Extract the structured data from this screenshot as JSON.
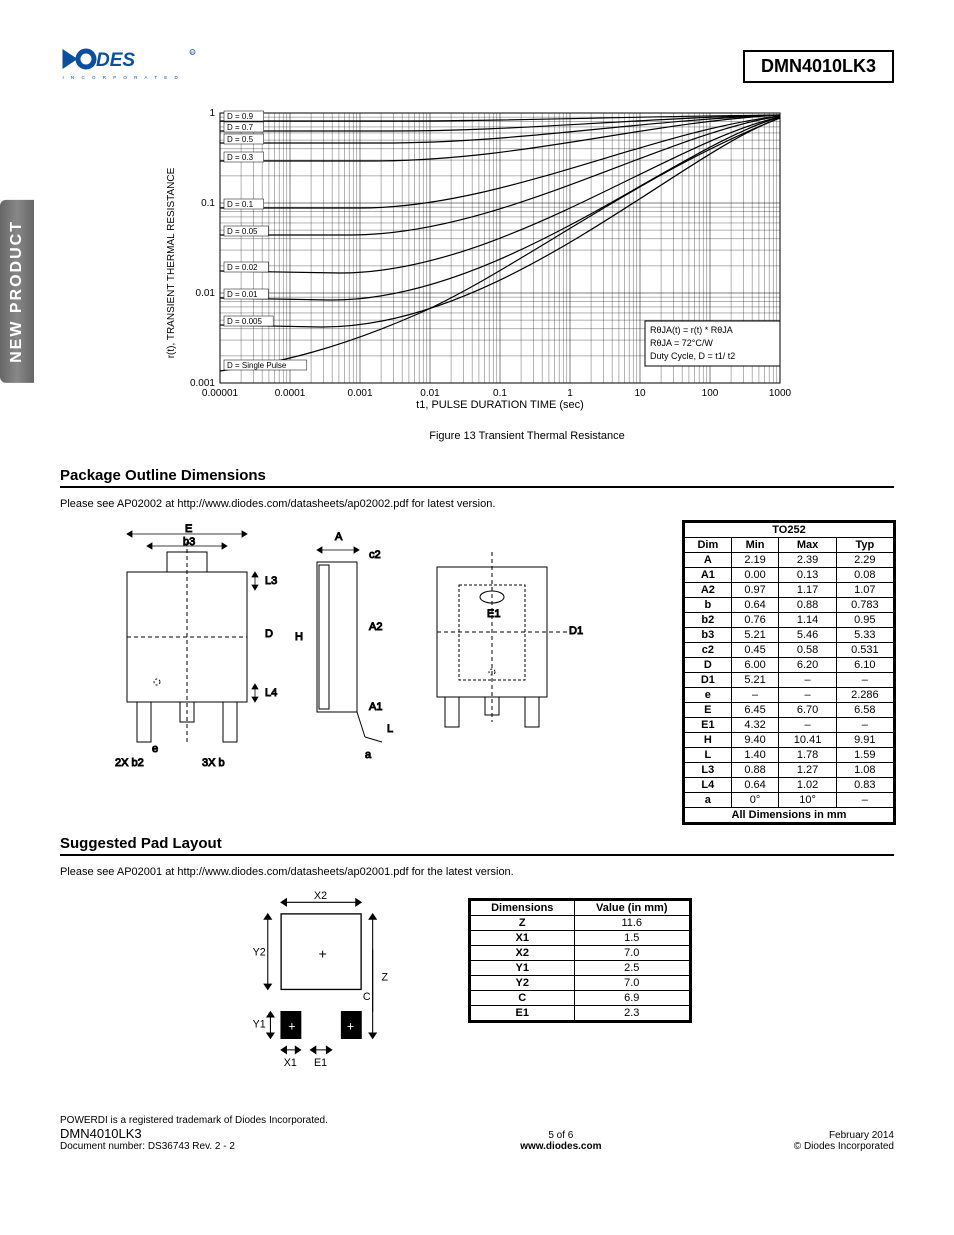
{
  "header": {
    "part_number": "DMN4010LK3"
  },
  "side_tab": "NEW PRODUCT",
  "chart": {
    "type": "line-loglog",
    "ylabel": "r(t), TRANSIENT THERMAL RESISTANCE",
    "xlabel": "t1, PULSE DURATION TIME (sec)",
    "caption": "Figure 13 Transient Thermal Resistance",
    "x_ticks": [
      "0.00001",
      "0.0001",
      "0.001",
      "0.01",
      "0.1",
      "1",
      "10",
      "100",
      "1000"
    ],
    "y_ticks": [
      "0.001",
      "0.01",
      "0.1",
      "1"
    ],
    "curve_labels": [
      "D = 0.9",
      "D = 0.7",
      "D = 0.5",
      "D = 0.3",
      "D = 0.1",
      "D = 0.05",
      "D = 0.02",
      "D = 0.01",
      "D = 0.005",
      "D = Single Pulse"
    ],
    "text_box": [
      "RθJA(t) = r(t) * RθJA",
      "RθJA = 72°C/W",
      "Duty Cycle, D = t1/ t2"
    ],
    "line_color": "#000000",
    "grid_color": "#000000",
    "background_color": "#ffffff",
    "font_size": 10
  },
  "sections": {
    "pkg_heading": "Package Outline Dimensions",
    "pkg_note": "Please see AP02002 at http://www.diodes.com/datasheets/ap02002.pdf for latest version.",
    "pad_heading": "Suggested Pad Layout",
    "pad_note": "Please see AP02001 at http://www.diodes.com/datasheets/ap02001.pdf for the latest version."
  },
  "pkg_diagram_labels": {
    "E": "E",
    "b3": "b3",
    "L3": "L3",
    "D": "D",
    "L4": "L4",
    "e": "e",
    "b2": "2X b2",
    "b": "3X b",
    "A": "A",
    "c2": "c2",
    "H": "H",
    "A2": "A2",
    "A1": "A1",
    "L": "L",
    "a": "a",
    "E1": "E1",
    "D1": "D1"
  },
  "dim_table": {
    "package": "TO252",
    "columns": [
      "Dim",
      "Min",
      "Max",
      "Typ"
    ],
    "rows": [
      [
        "A",
        "2.19",
        "2.39",
        "2.29"
      ],
      [
        "A1",
        "0.00",
        "0.13",
        "0.08"
      ],
      [
        "A2",
        "0.97",
        "1.17",
        "1.07"
      ],
      [
        "b",
        "0.64",
        "0.88",
        "0.783"
      ],
      [
        "b2",
        "0.76",
        "1.14",
        "0.95"
      ],
      [
        "b3",
        "5.21",
        "5.46",
        "5.33"
      ],
      [
        "c2",
        "0.45",
        "0.58",
        "0.531"
      ],
      [
        "D",
        "6.00",
        "6.20",
        "6.10"
      ],
      [
        "D1",
        "5.21",
        "–",
        "–"
      ],
      [
        "e",
        "–",
        "–",
        "2.286"
      ],
      [
        "E",
        "6.45",
        "6.70",
        "6.58"
      ],
      [
        "E1",
        "4.32",
        "–",
        "–"
      ],
      [
        "H",
        "9.40",
        "10.41",
        "9.91"
      ],
      [
        "L",
        "1.40",
        "1.78",
        "1.59"
      ],
      [
        "L3",
        "0.88",
        "1.27",
        "1.08"
      ],
      [
        "L4",
        "0.64",
        "1.02",
        "0.83"
      ],
      [
        "a",
        "0°",
        "10°",
        "–"
      ]
    ],
    "footnote": "All Dimensions in mm"
  },
  "pad_diagram_labels": {
    "X2": "X2",
    "Y2": "Y2",
    "Z": "Z",
    "C": "C",
    "Y1": "Y1",
    "X1": "X1",
    "E1": "E1"
  },
  "pad_table": {
    "columns": [
      "Dimensions",
      "Value (in mm)"
    ],
    "rows": [
      [
        "Z",
        "11.6"
      ],
      [
        "X1",
        "1.5"
      ],
      [
        "X2",
        "7.0"
      ],
      [
        "Y1",
        "2.5"
      ],
      [
        "Y2",
        "7.0"
      ],
      [
        "C",
        "6.9"
      ],
      [
        "E1",
        "2.3"
      ]
    ]
  },
  "footer": {
    "trademark": "POWERDI is a registered trademark of Diodes Incorporated.",
    "part": "DMN4010LK3",
    "docnum": "Document number: DS36743 Rev. 2 - 2",
    "page": "5 of 6",
    "site": "www.diodes.com",
    "date": "February 2014",
    "copyright": "© Diodes Incorporated"
  },
  "colors": {
    "brand": "#0a4ea0",
    "line": "#000000"
  }
}
